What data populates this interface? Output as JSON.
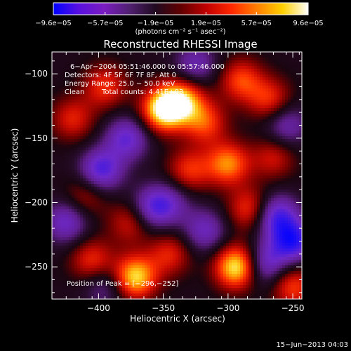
{
  "chart_data": {
    "type": "heatmap",
    "title": "Reconstructed RHESSI Image",
    "xlabel": "Heliocentric X (arcsec)",
    "ylabel": "Heliocentric Y (arcsec)",
    "xlim": [
      -436,
      -243
    ],
    "ylim": [
      -275,
      -83
    ],
    "xticks": [
      -400,
      -350,
      -300,
      -250
    ],
    "xtick_labels": [
      "−400",
      "−350",
      "−300",
      "−250"
    ],
    "yticks": [
      -100,
      -150,
      -200,
      -250
    ],
    "ytick_labels": [
      "−100",
      "−150",
      "−200",
      "−250"
    ],
    "colorbar": {
      "range": [
        -9.6e-05,
        9.6e-05
      ],
      "ticks": [
        -9.6e-05,
        -5.7e-05,
        -1.9e-05,
        1.9e-05,
        5.7e-05,
        9.6e-05
      ],
      "tick_labels": [
        "−9.6e−05",
        "−5.7e−05",
        "−1.9e−05",
        "1.9e−05",
        "5.7e−05",
        "9.6e−05"
      ],
      "units_label": "(photons cm⁻² s⁻¹ asec⁻²)",
      "colors": [
        "#0000ff",
        "#5a10e0",
        "#7a1cc0",
        "#502070",
        "#200a20",
        "#600000",
        "#c00000",
        "#ff2800",
        "#ff8000",
        "#ffd000",
        "#ffffff"
      ]
    },
    "annotations": {
      "time": "6−Apr−2004 05:51:46.000 to 05:57:46.000",
      "detectors": "Detectors: 4F 5F 6F 7F 8F, Att 0",
      "energy": "Energy Range: 25.0 − 50.0 keV",
      "clean": "Clean",
      "counts": "Total counts: 4.41E+03",
      "position_label": "Position of Peak = [−296,−252]"
    },
    "peak": [
      -296,
      -252
    ],
    "sources": [
      {
        "x": -350,
        "y": -128,
        "v": 1.0
      },
      {
        "x": -335,
        "y": -120,
        "v": 0.75
      },
      {
        "x": -372,
        "y": -258,
        "v": 0.9
      },
      {
        "x": -293,
        "y": -250,
        "v": 1.0
      },
      {
        "x": -300,
        "y": -170,
        "v": 0.7
      },
      {
        "x": -283,
        "y": -205,
        "v": 0.55
      },
      {
        "x": -330,
        "y": -175,
        "v": 0.5
      },
      {
        "x": -318,
        "y": -138,
        "v": 0.55
      },
      {
        "x": -405,
        "y": -245,
        "v": 0.5
      },
      {
        "x": -250,
        "y": -265,
        "v": 0.55
      },
      {
        "x": -420,
        "y": -135,
        "v": 0.45
      },
      {
        "x": -395,
        "y": -110,
        "v": 0.5
      },
      {
        "x": -290,
        "y": -105,
        "v": 0.55
      },
      {
        "x": -268,
        "y": -120,
        "v": 0.5
      },
      {
        "x": -375,
        "y": -215,
        "v": 0.45
      },
      {
        "x": -345,
        "y": -240,
        "v": 0.45
      },
      {
        "x": -265,
        "y": -165,
        "v": 0.4
      },
      {
        "x": -410,
        "y": -195,
        "v": 0.35
      },
      {
        "x": -378,
        "y": -150,
        "v": -0.6
      },
      {
        "x": -398,
        "y": -175,
        "v": -0.7
      },
      {
        "x": -360,
        "y": -205,
        "v": -0.55
      },
      {
        "x": -263,
        "y": -210,
        "v": -0.7
      },
      {
        "x": -250,
        "y": -230,
        "v": -0.8
      },
      {
        "x": -272,
        "y": -248,
        "v": -0.6
      },
      {
        "x": -318,
        "y": -222,
        "v": -0.5
      },
      {
        "x": -425,
        "y": -215,
        "v": -0.55
      },
      {
        "x": -325,
        "y": -93,
        "v": -0.45
      },
      {
        "x": -255,
        "y": -140,
        "v": -0.45
      },
      {
        "x": -345,
        "y": -200,
        "v": -0.4
      },
      {
        "x": -395,
        "y": -265,
        "v": -0.35
      }
    ],
    "grid": false
  },
  "footer": {
    "date": "15−Jun−2013 04:03"
  }
}
